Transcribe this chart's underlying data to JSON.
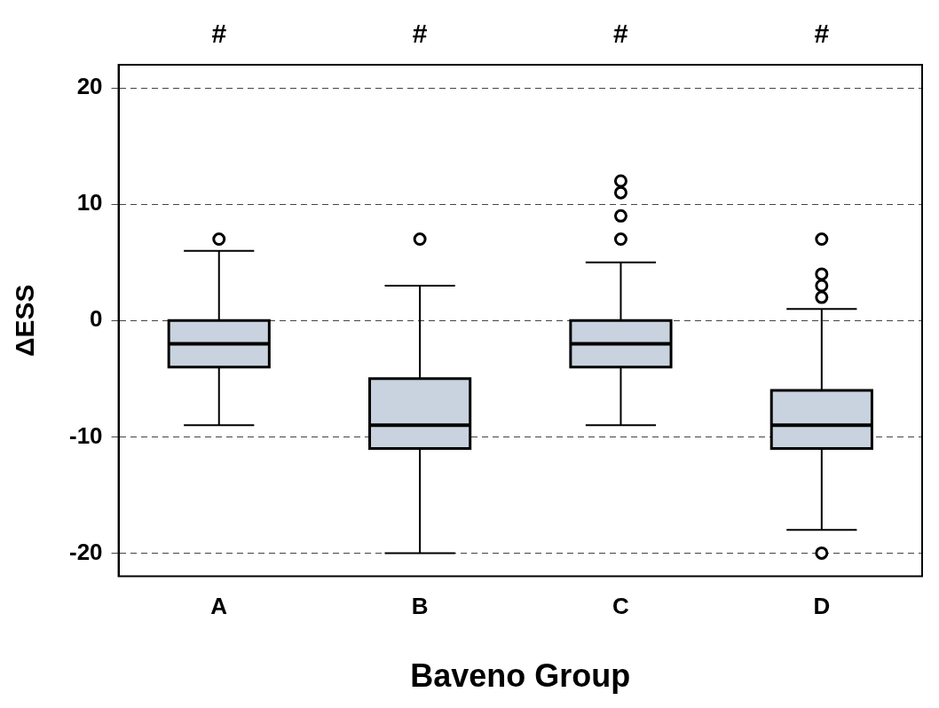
{
  "chart_data": {
    "type": "box",
    "xlabel": "Baveno Group",
    "ylabel": "ΔESS",
    "categories": [
      "A",
      "B",
      "C",
      "D"
    ],
    "boxes": [
      {
        "low": -9,
        "q1": -4,
        "median": -2,
        "q3": 0,
        "high": 6,
        "outliers": [
          7
        ]
      },
      {
        "low": -20,
        "q1": -11,
        "median": -9,
        "q3": -5,
        "high": 3,
        "outliers": [
          7
        ]
      },
      {
        "low": -9,
        "q1": -4,
        "median": -2,
        "q3": 0,
        "high": 5,
        "outliers": [
          7,
          9,
          11,
          12
        ]
      },
      {
        "low": -18,
        "q1": -11,
        "median": -9,
        "q3": -6,
        "high": 1,
        "outliers": [
          2,
          3,
          4,
          7,
          -20
        ]
      }
    ],
    "color": "#c8d3df",
    "ylim": [
      -22,
      22
    ],
    "yticks": [
      -20,
      -10,
      0,
      10,
      20
    ],
    "grid": "y",
    "marker": "circle",
    "annotations": [
      "#",
      "#",
      "#",
      "#"
    ]
  }
}
